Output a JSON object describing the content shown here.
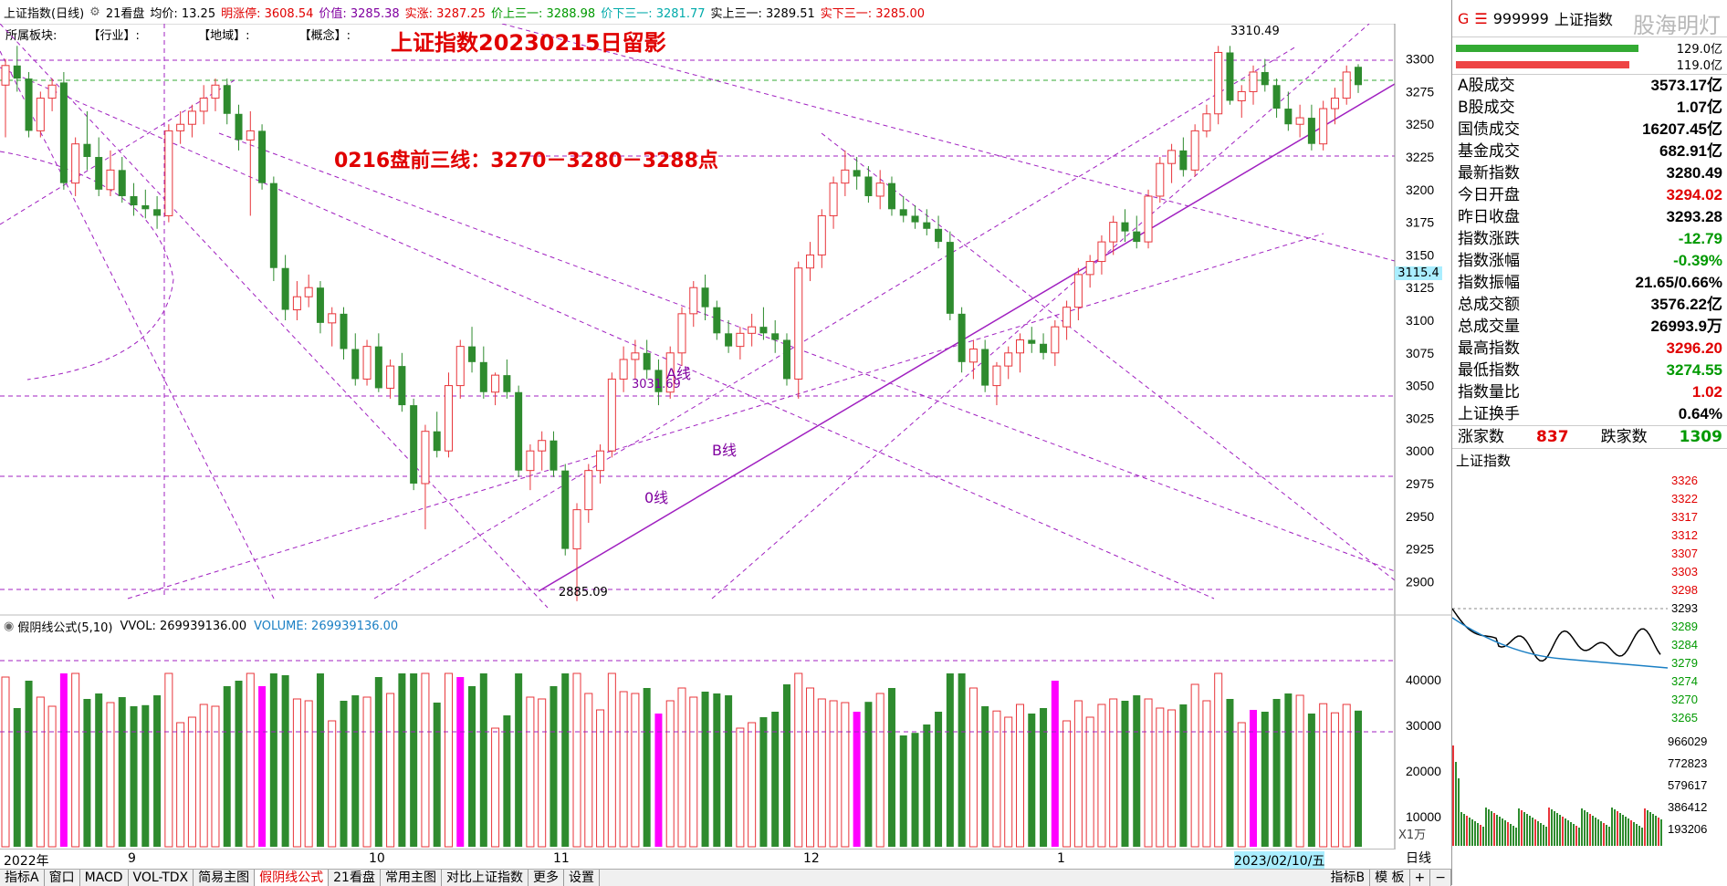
{
  "topbar": {
    "title": "上证指数(日线)",
    "tab21": "21看盘",
    "avg_label": "均价: 13.25",
    "limit_up": "明涨停: 3608.54",
    "value_label": "价值: 3285.38",
    "real_up": "实涨: 3287.25",
    "price_up3": "价上三一: 3288.98",
    "price_down3": "价下三一: 3281.77",
    "real_up3": "实上三一: 3289.51",
    "real_down3": "实下三一: 3285.00"
  },
  "subheader": {
    "sector": "所属板块:",
    "industry": "【行业】:",
    "region": "【地域】:",
    "concept": "【概念】:"
  },
  "annotations": {
    "main_title": "上证指数20230215日留影",
    "note": "0216盘前三线：3270－3280－3288点",
    "high_label": "3310.49",
    "low_label": "2885.09",
    "mid_label": "3031.69",
    "a_line": "A线",
    "b_line": "B线",
    "zero_line": "0线",
    "cursor_price": "3115.4"
  },
  "price_axis": [
    "3300",
    "3275",
    "3250",
    "3225",
    "3200",
    "3175",
    "3150",
    "3125",
    "3100",
    "3075",
    "3050",
    "3025",
    "3000",
    "2975",
    "2950",
    "2925",
    "2900"
  ],
  "vol_header": {
    "name": "假阴线公式(5,10)",
    "vvol": "VVOL: 269939136.00",
    "volume": "VOLUME: 269939136.00"
  },
  "vol_axis": [
    "40000",
    "30000",
    "20000",
    "10000"
  ],
  "vol_unit": "X1万",
  "date_axis": [
    {
      "label": "2022年"
    },
    {
      "label": "9"
    },
    {
      "label": "10"
    },
    {
      "label": "11"
    },
    {
      "label": "12"
    },
    {
      "label": "1"
    },
    {
      "label": "2023/02/10/五"
    }
  ],
  "bottom_tabs": [
    "指标A",
    "窗口",
    "MACD",
    "VOL-TDX",
    "简易主图",
    "假阴线公式",
    "21看盘",
    "常用主图",
    "对比上证指数",
    "更多",
    "设置"
  ],
  "bottom_right": {
    "index_b": "指标B",
    "template": "模 板",
    "plus": "+",
    "minus": "−",
    "daily": "日线"
  },
  "right_panel": {
    "code": "999999",
    "name": "上证指数",
    "watermark": "股海明灯",
    "bar_values": [
      "129.0亿",
      "119.0亿"
    ],
    "rows": [
      {
        "label": "A股成交",
        "value": "3573.17亿",
        "color": "black"
      },
      {
        "label": "B股成交",
        "value": "1.07亿",
        "color": "black"
      },
      {
        "label": "国债成交",
        "value": "16207.45亿",
        "color": "black"
      },
      {
        "label": "基金成交",
        "value": "682.91亿",
        "color": "black"
      },
      {
        "label": "最新指数",
        "value": "3280.49",
        "color": "black"
      },
      {
        "label": "今日开盘",
        "value": "3294.02",
        "color": "red"
      },
      {
        "label": "昨日收盘",
        "value": "3293.28",
        "color": "black"
      },
      {
        "label": "指数涨跌",
        "value": "-12.79",
        "color": "green"
      },
      {
        "label": "指数涨幅",
        "value": "-0.39%",
        "color": "green"
      },
      {
        "label": "指数振幅",
        "value": "21.65/0.66%",
        "color": "black"
      },
      {
        "label": "总成交额",
        "value": "3576.22亿",
        "color": "black"
      },
      {
        "label": "总成交量",
        "value": "26993.9万",
        "color": "black"
      },
      {
        "label": "最高指数",
        "value": "3296.20",
        "color": "red"
      },
      {
        "label": "最低指数",
        "value": "3274.55",
        "color": "green"
      },
      {
        "label": "指数量比",
        "value": "1.02",
        "color": "red"
      },
      {
        "label": "上证换手",
        "value": "0.64%",
        "color": "black"
      }
    ],
    "up_label": "涨家数",
    "up_value": "837",
    "down_label": "跌家数",
    "down_value": "1309",
    "intraday_title": "上证指数",
    "intraday_axis": [
      "3326",
      "3322",
      "3317",
      "3312",
      "3307",
      "3303",
      "3298",
      "3293",
      "3289",
      "3284",
      "3279",
      "3274",
      "3270",
      "3265"
    ],
    "intraday_vol_axis": [
      "966029",
      "772823",
      "579617",
      "386412",
      "193206"
    ]
  },
  "chart_data": {
    "type": "candlestick",
    "ylim": [
      2880,
      3320
    ],
    "candles": [
      [
        3280,
        3300,
        3240,
        3295
      ],
      [
        3295,
        3310,
        3275,
        3285
      ],
      [
        3285,
        3290,
        3240,
        3245
      ],
      [
        3245,
        3275,
        3240,
        3270
      ],
      [
        3270,
        3285,
        3260,
        3280
      ],
      [
        3282,
        3290,
        3200,
        3205
      ],
      [
        3205,
        3240,
        3195,
        3235
      ],
      [
        3235,
        3260,
        3215,
        3225
      ],
      [
        3225,
        3240,
        3195,
        3200
      ],
      [
        3200,
        3230,
        3195,
        3215
      ],
      [
        3215,
        3225,
        3190,
        3195
      ],
      [
        3195,
        3205,
        3180,
        3188
      ],
      [
        3188,
        3200,
        3178,
        3185
      ],
      [
        3185,
        3195,
        3170,
        3180
      ],
      [
        3180,
        3250,
        3175,
        3245
      ],
      [
        3245,
        3260,
        3235,
        3250
      ],
      [
        3250,
        3265,
        3240,
        3260
      ],
      [
        3260,
        3280,
        3250,
        3270
      ],
      [
        3270,
        3285,
        3260,
        3280
      ],
      [
        3280,
        3285,
        3250,
        3258
      ],
      [
        3258,
        3265,
        3230,
        3238
      ],
      [
        3238,
        3260,
        3180,
        3245
      ],
      [
        3245,
        3250,
        3200,
        3205
      ],
      [
        3205,
        3210,
        3130,
        3140
      ],
      [
        3140,
        3150,
        3100,
        3108
      ],
      [
        3108,
        3130,
        3100,
        3118
      ],
      [
        3118,
        3135,
        3110,
        3125
      ],
      [
        3125,
        3130,
        3090,
        3098
      ],
      [
        3098,
        3110,
        3080,
        3105
      ],
      [
        3105,
        3110,
        3070,
        3078
      ],
      [
        3078,
        3090,
        3050,
        3055
      ],
      [
        3055,
        3085,
        3050,
        3080
      ],
      [
        3080,
        3090,
        3045,
        3048
      ],
      [
        3048,
        3070,
        3040,
        3065
      ],
      [
        3065,
        3075,
        3030,
        3035
      ],
      [
        3035,
        3040,
        2970,
        2975
      ],
      [
        2975,
        3020,
        2940,
        3015
      ],
      [
        3015,
        3030,
        2995,
        3000
      ],
      [
        3000,
        3060,
        2995,
        3050
      ],
      [
        3050,
        3085,
        3040,
        3080
      ],
      [
        3080,
        3095,
        3060,
        3068
      ],
      [
        3068,
        3080,
        3040,
        3045
      ],
      [
        3045,
        3060,
        3035,
        3058
      ],
      [
        3058,
        3070,
        3040,
        3045
      ],
      [
        3045,
        3050,
        2980,
        2985
      ],
      [
        2985,
        3005,
        2970,
        3000
      ],
      [
        3000,
        3015,
        2985,
        3008
      ],
      [
        3008,
        3015,
        2980,
        2985
      ],
      [
        2985,
        2990,
        2920,
        2925
      ],
      [
        2925,
        2960,
        2885,
        2955
      ],
      [
        2955,
        2990,
        2945,
        2985
      ],
      [
        2985,
        3005,
        2975,
        3000
      ],
      [
        3000,
        3060,
        2995,
        3055
      ],
      [
        3055,
        3080,
        3045,
        3070
      ],
      [
        3070,
        3085,
        3055,
        3075
      ],
      [
        3075,
        3085,
        3055,
        3062
      ],
      [
        3062,
        3070,
        3035,
        3045
      ],
      [
        3045,
        3080,
        3040,
        3075
      ],
      [
        3075,
        3110,
        3065,
        3105
      ],
      [
        3105,
        3130,
        3095,
        3125
      ],
      [
        3125,
        3135,
        3100,
        3110
      ],
      [
        3110,
        3115,
        3085,
        3090
      ],
      [
        3090,
        3100,
        3075,
        3080
      ],
      [
        3080,
        3095,
        3070,
        3090
      ],
      [
        3090,
        3105,
        3080,
        3095
      ],
      [
        3095,
        3110,
        3085,
        3090
      ],
      [
        3090,
        3100,
        3075,
        3085
      ],
      [
        3085,
        3090,
        3050,
        3055
      ],
      [
        3055,
        3145,
        3040,
        3140
      ],
      [
        3140,
        3160,
        3130,
        3150
      ],
      [
        3150,
        3185,
        3140,
        3180
      ],
      [
        3180,
        3210,
        3170,
        3205
      ],
      [
        3205,
        3230,
        3195,
        3215
      ],
      [
        3215,
        3225,
        3200,
        3210
      ],
      [
        3210,
        3218,
        3190,
        3195
      ],
      [
        3195,
        3215,
        3185,
        3205
      ],
      [
        3205,
        3210,
        3180,
        3185
      ],
      [
        3185,
        3195,
        3175,
        3180
      ],
      [
        3180,
        3188,
        3170,
        3175
      ],
      [
        3175,
        3185,
        3165,
        3170
      ],
      [
        3170,
        3180,
        3155,
        3160
      ],
      [
        3160,
        3168,
        3100,
        3105
      ],
      [
        3105,
        3110,
        3060,
        3068
      ],
      [
        3068,
        3085,
        3055,
        3078
      ],
      [
        3078,
        3085,
        3045,
        3050
      ],
      [
        3050,
        3068,
        3035,
        3065
      ],
      [
        3065,
        3080,
        3055,
        3075
      ],
      [
        3075,
        3090,
        3060,
        3085
      ],
      [
        3085,
        3095,
        3075,
        3082
      ],
      [
        3082,
        3090,
        3070,
        3075
      ],
      [
        3075,
        3100,
        3065,
        3095
      ],
      [
        3095,
        3115,
        3085,
        3110
      ],
      [
        3110,
        3140,
        3100,
        3135
      ],
      [
        3135,
        3150,
        3125,
        3145
      ],
      [
        3145,
        3165,
        3135,
        3160
      ],
      [
        3160,
        3180,
        3150,
        3175
      ],
      [
        3175,
        3185,
        3160,
        3168
      ],
      [
        3168,
        3180,
        3155,
        3160
      ],
      [
        3160,
        3200,
        3155,
        3195
      ],
      [
        3195,
        3225,
        3190,
        3220
      ],
      [
        3220,
        3235,
        3205,
        3230
      ],
      [
        3230,
        3240,
        3210,
        3215
      ],
      [
        3215,
        3250,
        3210,
        3245
      ],
      [
        3245,
        3265,
        3240,
        3258
      ],
      [
        3258,
        3310,
        3250,
        3305
      ],
      [
        3305,
        3310,
        3265,
        3268
      ],
      [
        3268,
        3280,
        3255,
        3275
      ],
      [
        3275,
        3295,
        3265,
        3290
      ],
      [
        3290,
        3300,
        3275,
        3280
      ],
      [
        3280,
        3285,
        3255,
        3262
      ],
      [
        3262,
        3275,
        3245,
        3250
      ],
      [
        3250,
        3265,
        3240,
        3255
      ],
      [
        3255,
        3265,
        3230,
        3235
      ],
      [
        3235,
        3268,
        3230,
        3262
      ],
      [
        3262,
        3278,
        3250,
        3270
      ],
      [
        3270,
        3295,
        3265,
        3290
      ],
      [
        3294,
        3296,
        3274,
        3280
      ]
    ]
  }
}
